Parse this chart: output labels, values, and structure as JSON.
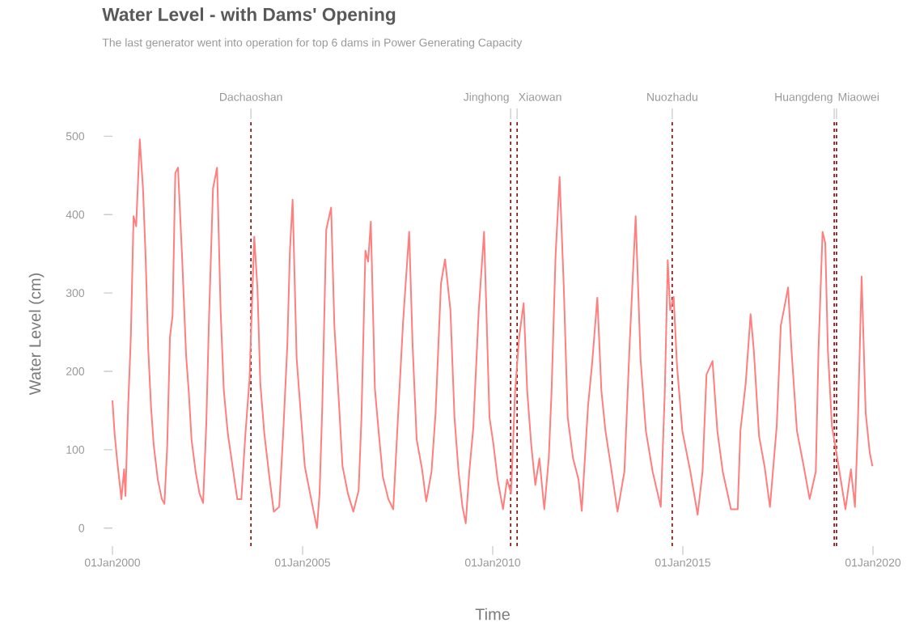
{
  "chart_data": {
    "type": "line",
    "title": "Water Level - with Dams' Opening",
    "subtitle": "The last generator went into operation for top 6 dams in Power Generating Capacity",
    "xlabel": "Time",
    "ylabel": "Water Level (cm)",
    "color": "#ff7f7f",
    "x": [
      "2000-01-01",
      "2000-01-22",
      "2000-02-17",
      "2000-03-27",
      "2000-04-22",
      "2000-05-05",
      "2000-05-31",
      "2000-06-26",
      "2000-07-22",
      "2000-08-16",
      "2000-09-20",
      "2000-10-21",
      "2000-11-15",
      "2000-12-11",
      "2001-01-06",
      "2001-02-01",
      "2001-03-12",
      "2001-04-20",
      "2001-05-15",
      "2001-06-11",
      "2001-07-07",
      "2001-08-01",
      "2001-08-27",
      "2001-09-22",
      "2001-10-31",
      "2001-12-09",
      "2002-01-03",
      "2002-01-30",
      "2002-03-10",
      "2002-04-17",
      "2002-05-21",
      "2002-06-21",
      "2002-07-16",
      "2002-08-24",
      "2002-10-02",
      "2002-11-05",
      "2002-12-06",
      "2003-01-14",
      "2003-03-07",
      "2003-04-14",
      "2003-05-23",
      "2003-07-01",
      "2003-08-09",
      "2003-09-24",
      "2003-10-25",
      "2003-11-21",
      "2003-12-30",
      "2004-02-19",
      "2004-03-30",
      "2004-05-21",
      "2004-06-28",
      "2004-08-07",
      "2004-09-01",
      "2004-09-27",
      "2004-11-05",
      "2004-12-14",
      "2005-01-22",
      "2005-03-14",
      "2005-05-19",
      "2005-06-13",
      "2005-07-09",
      "2005-08-16",
      "2005-10-02",
      "2005-11-02",
      "2005-12-11",
      "2006-01-19",
      "2006-03-12",
      "2006-05-03",
      "2006-06-23",
      "2006-07-20",
      "2006-08-27",
      "2006-09-22",
      "2006-10-18",
      "2006-11-26",
      "2007-01-03",
      "2007-02-11",
      "2007-04-04",
      "2007-05-21",
      "2007-07-04",
      "2007-08-24",
      "2007-10-21",
      "2007-11-23",
      "2008-01-01",
      "2008-02-22",
      "2008-04-02",
      "2008-05-23",
      "2008-07-01",
      "2008-08-22",
      "2008-09-30",
      "2008-11-21",
      "2008-12-30",
      "2009-02-07",
      "2009-03-17",
      "2009-04-17",
      "2009-05-21",
      "2009-06-28",
      "2009-08-20",
      "2009-10-10",
      "2009-12-01",
      "2010-01-09",
      "2010-02-17",
      "2010-04-10",
      "2010-05-19",
      "2010-06-26",
      "2010-08-04",
      "2010-09-12",
      "2010-10-25",
      "2010-11-28",
      "2011-01-06",
      "2011-02-14",
      "2011-03-25",
      "2011-05-11",
      "2011-06-23",
      "2011-07-20",
      "2011-08-27",
      "2011-10-05",
      "2011-11-13",
      "2011-12-22",
      "2012-02-11",
      "2012-04-04",
      "2012-05-05",
      "2012-07-04",
      "2012-08-12",
      "2012-10-02",
      "2012-11-10",
      "2012-12-19",
      "2013-02-09",
      "2013-04-14",
      "2013-06-19",
      "2013-08-09",
      "2013-10-05",
      "2013-11-21",
      "2014-01-11",
      "2014-03-17",
      "2014-06-03",
      "2014-07-12",
      "2014-08-09",
      "2014-09-01",
      "2014-10-05",
      "2014-11-05",
      "2014-12-27",
      "2015-03-14",
      "2015-05-23",
      "2015-07-09",
      "2015-08-16",
      "2015-10-13",
      "2015-11-28",
      "2016-01-19",
      "2016-04-07",
      "2016-06-11",
      "2016-07-07",
      "2016-08-27",
      "2016-10-13",
      "2016-11-13",
      "2017-01-03",
      "2017-02-24",
      "2017-04-17",
      "2017-06-21",
      "2017-07-30",
      "2017-09-07",
      "2017-10-08",
      "2017-11-10",
      "2018-01-01",
      "2018-03-07",
      "2018-05-03",
      "2018-07-01",
      "2018-07-27",
      "2018-09-04",
      "2018-09-30",
      "2018-10-25",
      "2018-12-03",
      "2019-01-24",
      "2019-04-12",
      "2019-06-03",
      "2019-07-12",
      "2019-08-07",
      "2019-09-14",
      "2019-10-23",
      "2019-12-01",
      "2019-12-27"
    ],
    "values": [
      163,
      120,
      84,
      37,
      75,
      41,
      155,
      244,
      398,
      385,
      496,
      433,
      347,
      227,
      155,
      106,
      62,
      37,
      31,
      106,
      244,
      271,
      453,
      460,
      347,
      220,
      175,
      113,
      72,
      44,
      32,
      134,
      264,
      433,
      460,
      278,
      175,
      120,
      72,
      37,
      37,
      120,
      189,
      372,
      305,
      185,
      120,
      62,
      21,
      27,
      120,
      233,
      354,
      419,
      216,
      147,
      79,
      44,
      0,
      44,
      155,
      381,
      409,
      258,
      171,
      79,
      44,
      21,
      48,
      141,
      354,
      340,
      391,
      178,
      120,
      65,
      37,
      24,
      137,
      264,
      378,
      233,
      113,
      75,
      34,
      72,
      147,
      312,
      343,
      278,
      141,
      72,
      27,
      6,
      72,
      127,
      278,
      378,
      141,
      106,
      62,
      24,
      62,
      44,
      175,
      244,
      287,
      175,
      106,
      55,
      89,
      24,
      89,
      175,
      347,
      448,
      312,
      141,
      89,
      62,
      22,
      155,
      209,
      294,
      175,
      124,
      79,
      21,
      72,
      237,
      398,
      216,
      124,
      72,
      27,
      175,
      342,
      278,
      295,
      209,
      124,
      72,
      17,
      72,
      196,
      213,
      124,
      72,
      24,
      24,
      124,
      185,
      273,
      227,
      117,
      79,
      27,
      130,
      258,
      285,
      307,
      227,
      124,
      79,
      37,
      72,
      227,
      378,
      364,
      227,
      130,
      89,
      24,
      75,
      27,
      124,
      321,
      147,
      96,
      79
    ],
    "xlim": [
      "2000-01-01",
      "2020-01-01"
    ],
    "ylim": [
      -23,
      519
    ],
    "xticks": [
      {
        "value": "2000-01-01",
        "label": "01Jan2000"
      },
      {
        "value": "2005-01-01",
        "label": "01Jan2005"
      },
      {
        "value": "2010-01-01",
        "label": "01Jan2010"
      },
      {
        "value": "2015-01-01",
        "label": "01Jan2015"
      },
      {
        "value": "2020-01-01",
        "label": "01Jan2020"
      }
    ],
    "yticks": [
      0,
      100,
      200,
      300,
      400,
      500
    ],
    "ref_lines": [
      {
        "axis": "x",
        "value": "2003-08-23",
        "label": "Dachaoshan",
        "color": "#8b0000",
        "line_style": "dashed"
      },
      {
        "axis": "x",
        "value": "2010-06-22",
        "label": "Jinghong",
        "color": "#8b0000",
        "line_style": "dashed"
      },
      {
        "axis": "x",
        "value": "2010-08-23",
        "label": "Xiaowan",
        "color": "#8b0000",
        "line_style": "dashed"
      },
      {
        "axis": "x",
        "value": "2014-09-21",
        "label": "Nuozhadu",
        "color": "#8b0000",
        "line_style": "dashed"
      },
      {
        "axis": "x",
        "value": "2018-12-25",
        "label": "Huangdeng",
        "color": "#8b0000",
        "line_style": "dashed"
      },
      {
        "axis": "x",
        "value": "2019-01-16",
        "label": "Miaowei",
        "color": "#8b0000",
        "line_style": "dashed"
      }
    ]
  }
}
